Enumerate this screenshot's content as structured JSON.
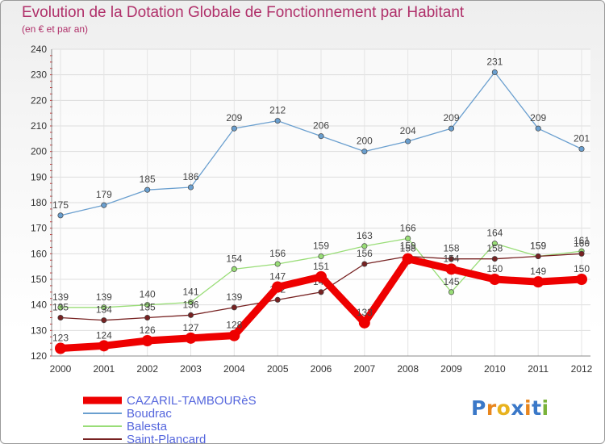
{
  "title": "Evolution de la Dotation Globale de Fonctionnement par Habitant",
  "subtitle": "(en € et par an)",
  "logo_text": "Proxiti",
  "chart_data": {
    "type": "line",
    "title": "Evolution de la Dotation Globale de Fonctionnement par Habitant",
    "subtitle": "(en € et par an)",
    "x": [
      "2000",
      "2001",
      "2002",
      "2003",
      "2004",
      "2005",
      "2006",
      "2007",
      "2008",
      "2009",
      "2010",
      "2011",
      "2012"
    ],
    "ylim": [
      120,
      240
    ],
    "yticks": [
      120,
      130,
      140,
      150,
      160,
      170,
      180,
      190,
      200,
      210,
      220,
      230,
      240
    ],
    "grid": true,
    "legend_position": "bottom-left",
    "series": [
      {
        "name": "CAZARIL-TAMBOURèS",
        "color": "#ee0000",
        "values": [
          123,
          124,
          126,
          127,
          128,
          147,
          151,
          133,
          158,
          154,
          150,
          149,
          150
        ]
      },
      {
        "name": "Boudrac",
        "color": "#6a9fcf",
        "values": [
          175,
          179,
          185,
          186,
          209,
          212,
          206,
          200,
          204,
          209,
          231,
          209,
          201
        ]
      },
      {
        "name": "Balesta",
        "color": "#99dd77",
        "values": [
          139,
          139,
          140,
          141,
          154,
          156,
          159,
          163,
          166,
          145,
          164,
          159,
          161
        ]
      },
      {
        "name": "Saint-Plancard",
        "color": "#772222",
        "values": [
          135,
          134,
          135,
          136,
          139,
          142,
          145,
          156,
          159,
          158,
          158,
          159,
          160
        ]
      }
    ]
  }
}
